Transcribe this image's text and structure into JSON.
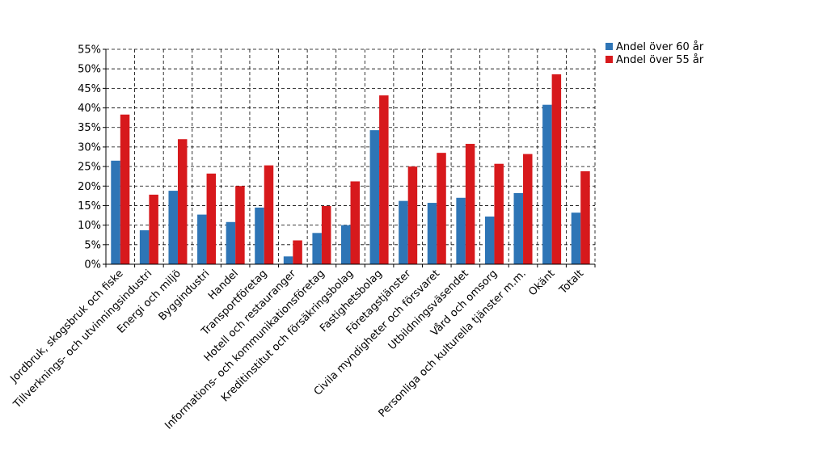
{
  "chart_data": {
    "type": "bar",
    "title": "",
    "xlabel": "",
    "ylabel": "",
    "ylim": [
      0,
      55
    ],
    "y_ticks": [
      "0%",
      "5%",
      "10%",
      "15%",
      "20%",
      "25%",
      "30%",
      "35%",
      "40%",
      "45%",
      "50%",
      "55%"
    ],
    "grid": true,
    "legend_position": "top-right",
    "categories": [
      "Jordbruk, skogsbruk och fiske",
      "Tillverknings- och utvinningsindustri",
      "Energi och miljö",
      "Byggindustri",
      "Handel",
      "Transportföretag",
      "Hotell och restauranger",
      "Informations- och kommunikationsföretag",
      "Kreditinstitut och försäkringsbolag",
      "Fastighetsbolag",
      "Företagstjänster",
      "Civila myndigheter och försvaret",
      "Utbildningsväsendet",
      "Vård och omsorg",
      "Personliga och kulturella tjänster m.m.",
      "Okänt",
      "Totalt"
    ],
    "series": [
      {
        "name": "Andel över 60 år",
        "color": "#2E75B6",
        "values": [
          26.5,
          8.7,
          18.8,
          12.7,
          10.8,
          14.5,
          2.0,
          8.0,
          10.0,
          34.3,
          16.2,
          15.7,
          17.0,
          12.2,
          18.2,
          40.8,
          13.2
        ]
      },
      {
        "name": "Andel över 55 år",
        "color": "#D7191C",
        "values": [
          38.3,
          17.8,
          32.0,
          23.2,
          20.0,
          25.3,
          6.1,
          14.9,
          21.2,
          43.2,
          25.0,
          28.5,
          30.8,
          25.7,
          28.2,
          48.6,
          23.8
        ]
      }
    ]
  }
}
